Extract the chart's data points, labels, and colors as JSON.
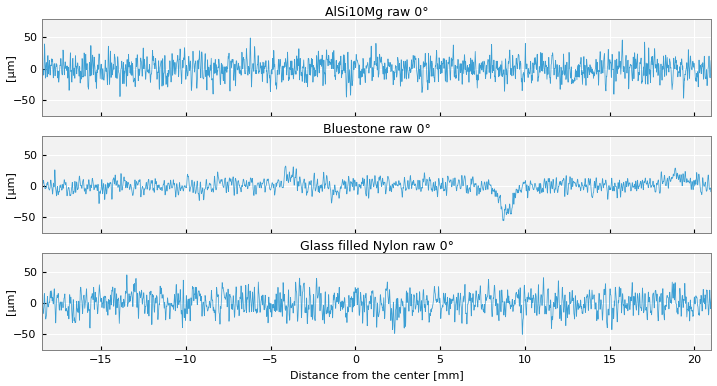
{
  "titles": [
    "AlSi10Mg raw 0°",
    "Bluestone raw 0°",
    "Glass filled Nylon raw 0°"
  ],
  "xlabel": "Distance from the center [mm]",
  "ylabel": "[μm]",
  "xlim": [
    -18.5,
    21
  ],
  "xticks": [
    -15,
    -10,
    -5,
    0,
    5,
    10,
    15,
    20
  ],
  "ylim": [
    -75,
    80
  ],
  "yticks": [
    -50,
    0,
    50
  ],
  "line_color": "#3C9FD4",
  "line_width": 0.55,
  "bg_color": "#FFFFFF",
  "axes_bg_color": "#F2F2F2",
  "grid_color": "#FFFFFF",
  "spine_color": "#808080",
  "n_points": 4000,
  "x_start": -18.5,
  "x_end": 21.0,
  "title_fontsize": 9,
  "label_fontsize": 8,
  "tick_fontsize": 8
}
